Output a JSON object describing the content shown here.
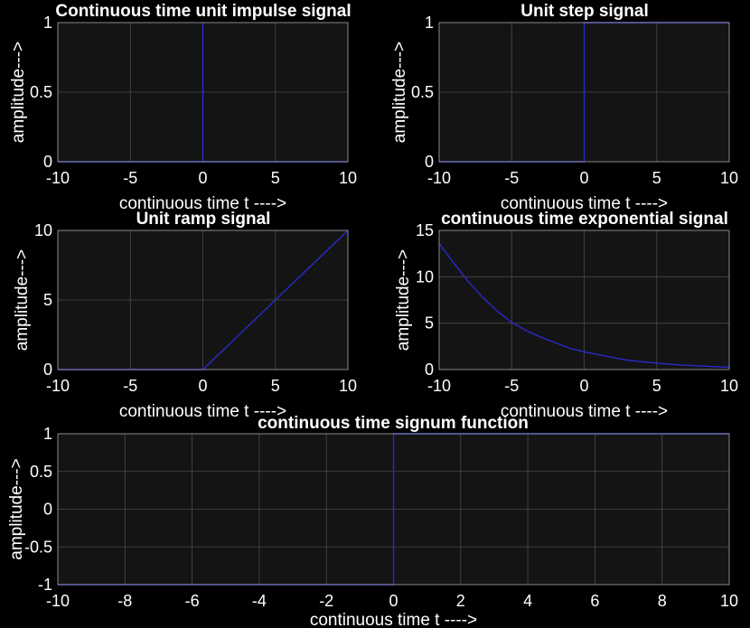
{
  "figure": {
    "background": "#000000",
    "axes_background": "#141414",
    "line_color": "#2a2acc",
    "grid": true
  },
  "chart_data": [
    {
      "type": "line",
      "title": "Continuous time unit impulse signal",
      "xlabel": "continuous time t ---->",
      "ylabel": "amplitude--->",
      "xlim": [
        -10,
        10
      ],
      "ylim": [
        0,
        1
      ],
      "xticks": [
        -10,
        -5,
        0,
        5,
        10
      ],
      "yticks": [
        0,
        0.5,
        1
      ],
      "series": [
        {
          "x": [
            -10,
            0,
            0,
            0,
            10
          ],
          "y": [
            0,
            0,
            1,
            0,
            0
          ]
        }
      ]
    },
    {
      "type": "line",
      "title": "Unit step signal",
      "xlabel": "continuous time t ---->",
      "ylabel": "amplitude--->",
      "xlim": [
        -10,
        10
      ],
      "ylim": [
        0,
        1
      ],
      "xticks": [
        -10,
        -5,
        0,
        5,
        10
      ],
      "yticks": [
        0,
        0.5,
        1
      ],
      "series": [
        {
          "x": [
            -10,
            0,
            0,
            10
          ],
          "y": [
            0,
            0,
            1,
            1
          ]
        }
      ]
    },
    {
      "type": "line",
      "title": "Unit ramp signal",
      "xlabel": "continuous time t ---->",
      "ylabel": "amplitude--->",
      "xlim": [
        -10,
        10
      ],
      "ylim": [
        0,
        10
      ],
      "xticks": [
        -10,
        -5,
        0,
        5,
        10
      ],
      "yticks": [
        0,
        5,
        10
      ],
      "series": [
        {
          "x": [
            -10,
            0,
            10
          ],
          "y": [
            0,
            0,
            10
          ]
        }
      ]
    },
    {
      "type": "line",
      "title": "continuous time exponential signal",
      "xlabel": "continuous time t ---->",
      "ylabel": "amplitude--->",
      "xlim": [
        -10,
        10
      ],
      "ylim": [
        0,
        15
      ],
      "xticks": [
        -10,
        -5,
        0,
        5,
        10
      ],
      "yticks": [
        0,
        5,
        10,
        15
      ],
      "series": [
        {
          "x": [
            -10,
            -9,
            -8,
            -7,
            -6,
            -5,
            -4,
            -3,
            -2,
            -1,
            0,
            1,
            2,
            3,
            4,
            5,
            6,
            7,
            8,
            9,
            10
          ],
          "y": [
            13.6,
            11.5,
            9.5,
            7.8,
            6.3,
            5.1,
            4.2,
            3.5,
            2.9,
            2.3,
            1.9,
            1.6,
            1.3,
            1.0,
            0.85,
            0.7,
            0.57,
            0.47,
            0.38,
            0.31,
            0.25
          ]
        }
      ]
    },
    {
      "type": "line",
      "title": "continuous time signum function",
      "xlabel": "continuous time t ---->",
      "ylabel": "amplitude--->",
      "xlim": [
        -10,
        10
      ],
      "ylim": [
        -1,
        1
      ],
      "xticks": [
        -10,
        -8,
        -6,
        -4,
        -2,
        0,
        2,
        4,
        6,
        8,
        10
      ],
      "yticks": [
        -1,
        -0.5,
        0,
        0.5,
        1
      ],
      "series": [
        {
          "x": [
            -10,
            0,
            0,
            10
          ],
          "y": [
            -1,
            -1,
            1,
            1
          ]
        }
      ]
    }
  ]
}
